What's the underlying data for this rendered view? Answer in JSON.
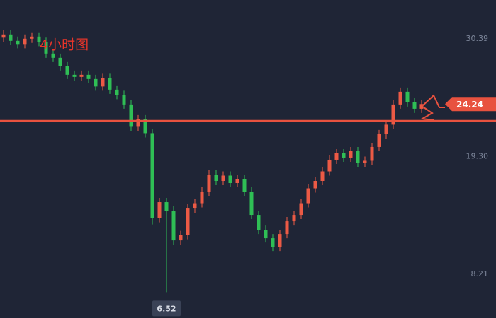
{
  "chart_data": {
    "type": "candlestick",
    "title": "4小时图",
    "ylim": [
      4.08,
      34.05
    ],
    "yticks": [
      30.39,
      {
        "value": 19.3,
        "label": "19.30"
      },
      8.21
    ],
    "up_color": "#ec5a45",
    "down_color": "#2fbf55",
    "level_line": 22.66,
    "level_color": "#e8523f",
    "open": [
      30.5,
      30.8,
      30.2,
      29.9,
      30.4,
      30.6,
      30.1,
      29.0,
      28.6,
      27.8,
      27.0,
      26.8,
      27.0,
      26.6,
      25.9,
      26.7,
      25.6,
      25.1,
      24.2,
      22.1,
      22.8,
      21.5,
      13.5,
      15.0,
      14.2,
      11.4,
      11.9,
      14.4,
      14.9,
      16.0,
      17.6,
      17.0,
      17.5,
      16.8,
      17.2,
      16.0,
      13.8,
      12.4,
      11.6,
      10.8,
      12.0,
      13.2,
      13.8,
      14.9,
      16.3,
      17.0,
      17.9,
      19.0,
      19.6,
      19.2,
      19.8,
      18.7,
      18.9,
      20.2,
      21.4,
      22.3,
      24.2,
      25.4,
      24.4,
      23.8
    ],
    "high": [
      31.2,
      31.2,
      30.6,
      30.8,
      31.0,
      31.0,
      30.5,
      29.4,
      29.0,
      28.2,
      27.4,
      27.4,
      27.4,
      27.0,
      27.1,
      27.1,
      26.0,
      25.5,
      24.6,
      23.2,
      23.2,
      21.9,
      15.4,
      15.4,
      14.6,
      12.3,
      14.8,
      15.3,
      16.4,
      18.0,
      18.0,
      17.9,
      17.9,
      17.6,
      17.6,
      16.4,
      14.2,
      12.8,
      12.0,
      12.4,
      13.6,
      14.2,
      15.3,
      16.7,
      17.4,
      18.3,
      19.4,
      20.0,
      20.0,
      20.2,
      20.2,
      19.3,
      20.6,
      21.8,
      22.7,
      24.6,
      25.8,
      25.8,
      24.8,
      24.6
    ],
    "low": [
      30.1,
      29.8,
      29.5,
      29.5,
      30.0,
      29.7,
      28.6,
      28.2,
      27.4,
      26.6,
      26.4,
      26.4,
      26.2,
      25.5,
      25.5,
      25.2,
      24.7,
      23.8,
      21.7,
      21.7,
      21.1,
      12.9,
      13.1,
      6.52,
      11.0,
      11.0,
      11.5,
      14.0,
      14.5,
      15.6,
      16.6,
      16.6,
      16.4,
      16.4,
      15.6,
      13.4,
      12.0,
      11.2,
      10.4,
      10.4,
      11.6,
      12.8,
      13.4,
      14.5,
      15.9,
      16.6,
      17.5,
      18.6,
      18.8,
      18.8,
      18.3,
      18.3,
      18.5,
      19.8,
      21.0,
      21.9,
      23.8,
      24.0,
      23.4,
      23.4
    ],
    "close": [
      30.8,
      30.2,
      29.9,
      30.4,
      30.6,
      30.1,
      29.0,
      28.6,
      27.8,
      27.0,
      26.8,
      27.0,
      26.6,
      25.9,
      26.7,
      25.6,
      25.1,
      24.2,
      22.1,
      22.8,
      21.5,
      13.5,
      15.0,
      14.2,
      11.4,
      11.9,
      14.4,
      14.9,
      16.0,
      17.6,
      17.0,
      17.5,
      16.8,
      17.2,
      16.0,
      13.8,
      12.4,
      11.6,
      10.8,
      12.0,
      13.2,
      13.8,
      14.9,
      16.3,
      17.0,
      17.9,
      19.0,
      19.6,
      19.2,
      19.8,
      18.7,
      18.9,
      20.2,
      21.4,
      22.3,
      24.2,
      25.4,
      24.4,
      23.8,
      24.24
    ]
  }
}
